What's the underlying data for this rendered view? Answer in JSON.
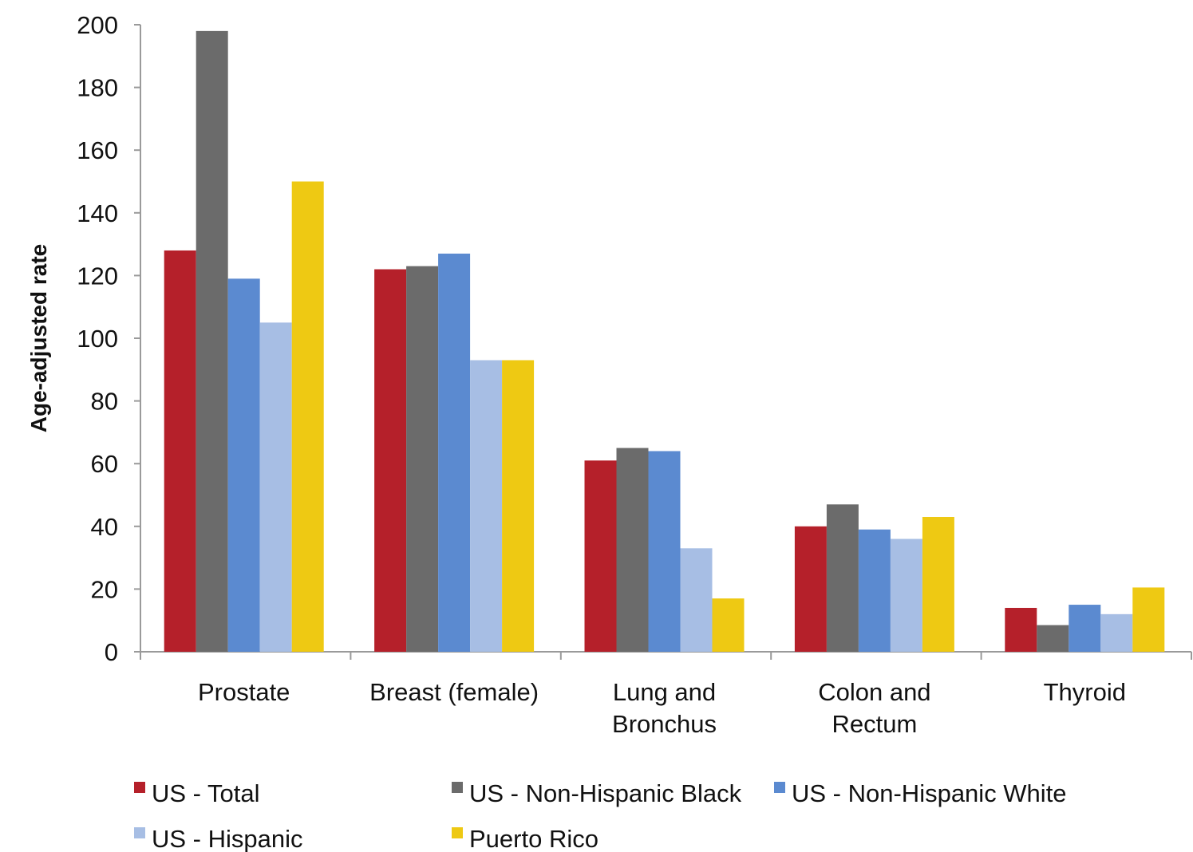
{
  "chart_data": {
    "type": "bar",
    "categories": [
      [
        "Prostate"
      ],
      [
        "Breast (female)"
      ],
      [
        "Lung and",
        "Bronchus"
      ],
      [
        "Colon and",
        "Rectum"
      ],
      [
        "Thyroid"
      ]
    ],
    "series": [
      {
        "name": "US - Total",
        "color": "#B5202A",
        "values": [
          128,
          122,
          61,
          40,
          14
        ]
      },
      {
        "name": "US - Non-Hispanic Black",
        "color": "#6B6B6B",
        "values": [
          198,
          123,
          65,
          47,
          8.5
        ]
      },
      {
        "name": "US - Non-Hispanic White",
        "color": "#5B8AD0",
        "values": [
          119,
          127,
          64,
          39,
          15
        ]
      },
      {
        "name": "US - Hispanic",
        "color": "#A7BEE4",
        "values": [
          105,
          93,
          33,
          36,
          12
        ]
      },
      {
        "name": "Puerto Rico",
        "color": "#EEC913",
        "values": [
          150,
          93,
          17,
          43,
          20.5
        ]
      }
    ],
    "ylabel": "Age-adjusted rate",
    "ylim": [
      0,
      200
    ],
    "yticks": [
      0,
      20,
      40,
      60,
      80,
      100,
      120,
      140,
      160,
      180,
      200
    ],
    "grid": false,
    "legend_position": "bottom"
  }
}
